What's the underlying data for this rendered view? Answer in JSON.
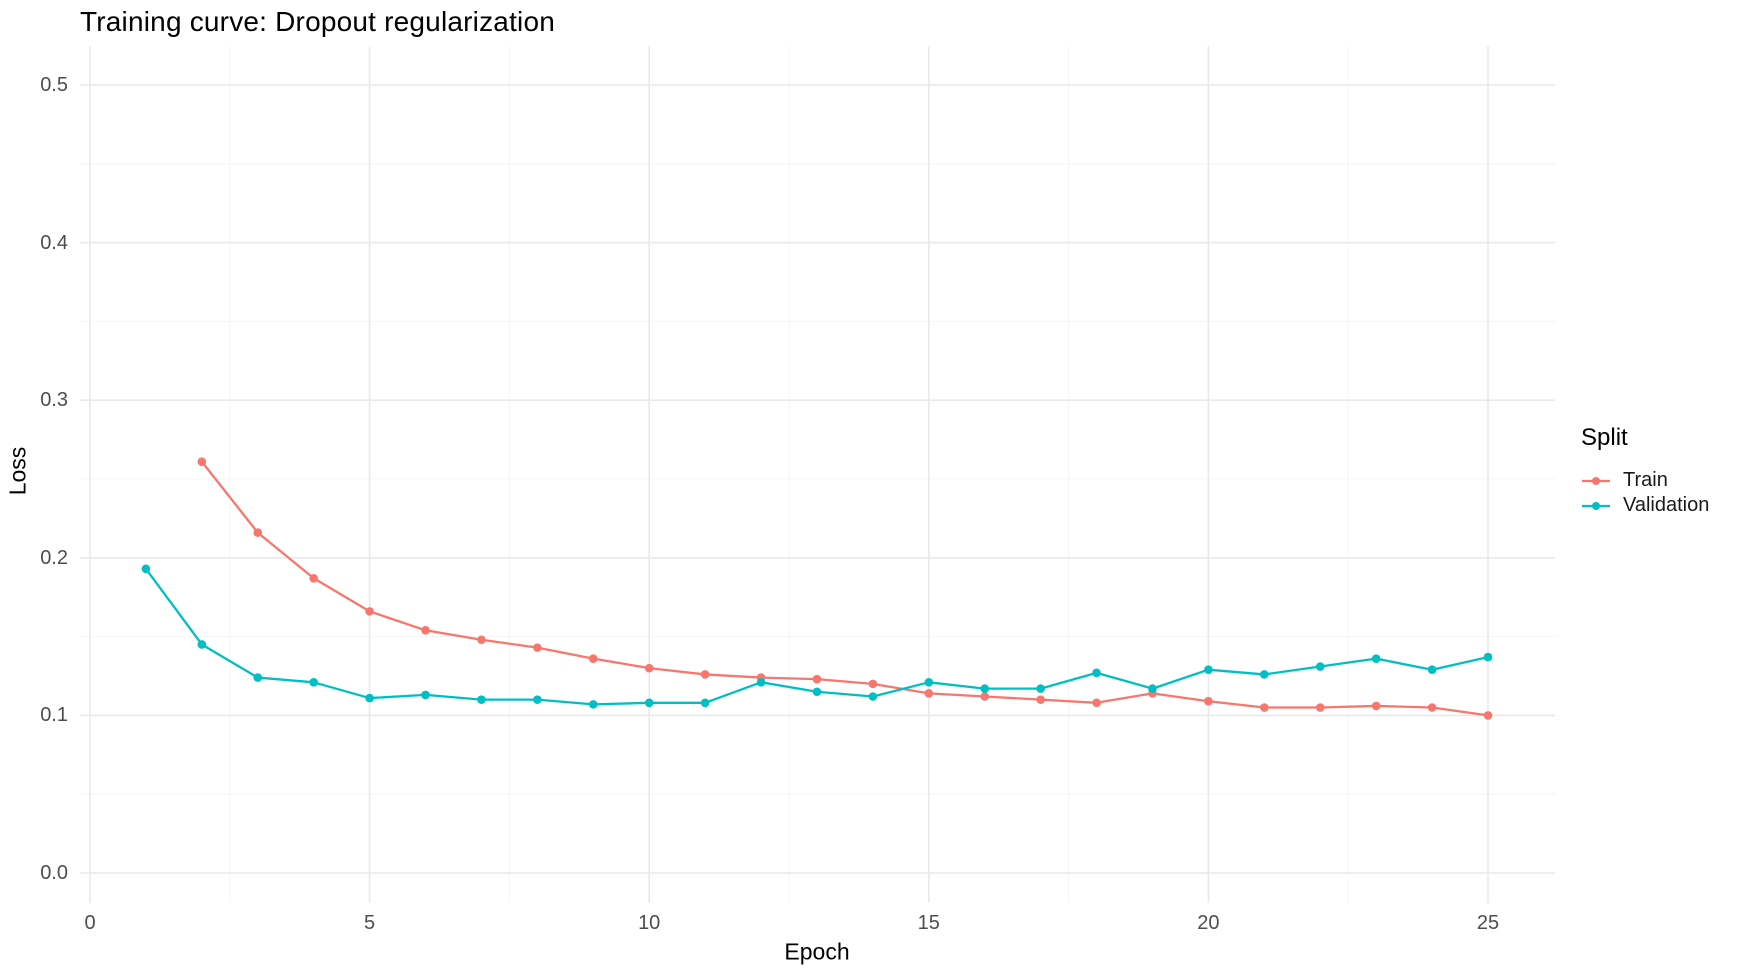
{
  "title": "Training curve: Dropout regularization",
  "axes": {
    "x_label": "Epoch",
    "y_label": "Loss"
  },
  "legend": {
    "title": "Split",
    "position": "right",
    "items": [
      {
        "label": "Train",
        "color": "#F8766D"
      },
      {
        "label": "Validation",
        "color": "#00BFC4"
      }
    ]
  },
  "chart_data": {
    "type": "line",
    "title": "Training curve: Dropout regularization",
    "xlabel": "Epoch",
    "ylabel": "Loss",
    "xlim": [
      0,
      25
    ],
    "ylim": [
      0.0,
      0.5
    ],
    "grid": true,
    "legend_title": "Split",
    "legend_position": "right",
    "x_ticks": {
      "values": [
        0,
        5,
        10,
        15,
        20,
        25
      ],
      "labels": [
        "0",
        "5",
        "10",
        "15",
        "20",
        "25"
      ]
    },
    "y_ticks": {
      "values": [
        0.0,
        0.1,
        0.2,
        0.3,
        0.4,
        0.5
      ],
      "labels": [
        "0.0",
        "0.1",
        "0.2",
        "0.3",
        "0.4",
        "0.5"
      ]
    },
    "x_minor_ticks": [
      2.5,
      7.5,
      12.5,
      17.5,
      22.5
    ],
    "y_minor_ticks": [
      0.05,
      0.15,
      0.25,
      0.35,
      0.45
    ],
    "series": [
      {
        "name": "Train",
        "color": "#F8766D",
        "x": [
          2,
          3,
          4,
          5,
          6,
          7,
          8,
          9,
          10,
          11,
          12,
          13,
          14,
          15,
          16,
          17,
          18,
          19,
          20,
          21,
          22,
          23,
          24,
          25
        ],
        "y": [
          0.261,
          0.216,
          0.187,
          0.166,
          0.154,
          0.148,
          0.143,
          0.136,
          0.13,
          0.126,
          0.124,
          0.123,
          0.12,
          0.114,
          0.112,
          0.11,
          0.108,
          0.114,
          0.109,
          0.105,
          0.105,
          0.106,
          0.105,
          0.1
        ]
      },
      {
        "name": "Validation",
        "color": "#00BFC4",
        "x": [
          1,
          2,
          3,
          4,
          5,
          6,
          7,
          8,
          9,
          10,
          11,
          12,
          13,
          14,
          15,
          16,
          17,
          18,
          19,
          20,
          21,
          22,
          23,
          24,
          25
        ],
        "y": [
          0.193,
          0.145,
          0.124,
          0.121,
          0.111,
          0.113,
          0.11,
          0.11,
          0.107,
          0.108,
          0.108,
          0.121,
          0.115,
          0.112,
          0.121,
          0.117,
          0.117,
          0.127,
          0.117,
          0.129,
          0.126,
          0.131,
          0.136,
          0.129,
          0.137
        ]
      }
    ],
    "grid_major_color": "#E9E9E9",
    "grid_minor_color": "#F4F4F4"
  }
}
